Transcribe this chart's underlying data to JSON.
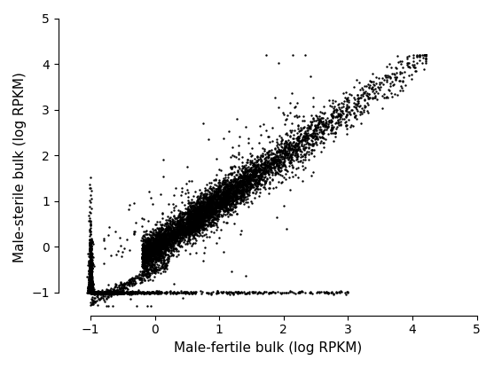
{
  "xlabel": "Male-fertile bulk (log RPKM)",
  "ylabel": "Male-sterile bulk (log RPKM)",
  "xlim": [
    -1.5,
    5
  ],
  "ylim": [
    -1.5,
    5
  ],
  "xticks": [
    -1,
    0,
    1,
    2,
    3,
    4,
    5
  ],
  "yticks": [
    -1,
    0,
    1,
    2,
    3,
    4,
    5
  ],
  "marker_color": "black",
  "marker_size": 3,
  "background_color": "white",
  "seed": 42,
  "xlabel_fontsize": 11,
  "ylabel_fontsize": 11,
  "tick_fontsize": 10
}
